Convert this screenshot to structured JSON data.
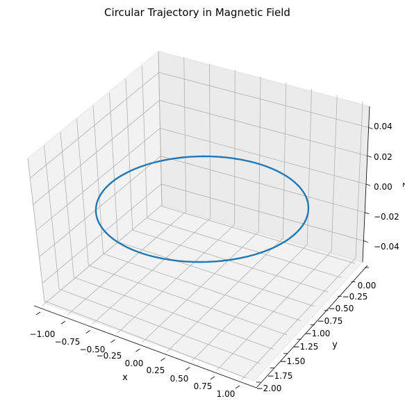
{
  "chart_data": {
    "type": "line",
    "projection": "3d",
    "title": "Circular Trajectory in Magnetic Field",
    "xlabel": "x",
    "ylabel": "y",
    "zlabel": "z",
    "xlim": [
      -1.1,
      1.1
    ],
    "ylim": [
      -2.1,
      0.1
    ],
    "zlim": [
      -0.055,
      0.055
    ],
    "xticks": [
      "−1.00",
      "−0.75",
      "−0.50",
      "−0.25",
      "0.00",
      "0.25",
      "0.50",
      "0.75",
      "1.00"
    ],
    "yticks": [
      "−2.00",
      "−1.75",
      "−1.50",
      "−1.25",
      "−1.00",
      "−0.75",
      "−0.50",
      "−0.25",
      "0.00"
    ],
    "zticks": [
      "−0.04",
      "−0.02",
      "0.00",
      "0.02",
      "0.04"
    ],
    "grid": true,
    "series": [
      {
        "shape": "circle",
        "center": [
          0,
          -1,
          0
        ],
        "radius": 1,
        "color": "#1f77b4"
      }
    ]
  }
}
